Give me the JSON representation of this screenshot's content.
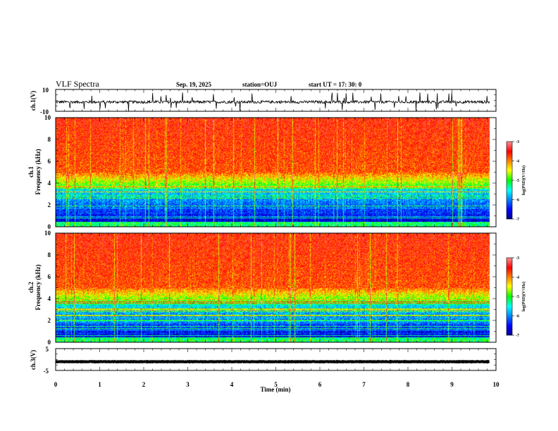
{
  "header": {
    "title": "VLF Spectra",
    "date": "Sep. 19, 2025",
    "station": "station=OUJ",
    "start": "start  UT =   17: 30: 0"
  },
  "chart_data": [
    {
      "type": "line",
      "name": "ch1-waveform",
      "ylabel": "ch.1(V)",
      "ylim": [
        -10,
        10
      ],
      "yticks": [
        {
          "value": 10,
          "label": "10"
        },
        {
          "value": -10,
          "label": "-10"
        }
      ],
      "xlim": [
        0,
        10
      ],
      "x_data_end": 9.85,
      "baseline": -1.5,
      "noise_amplitude": 2.5,
      "color": "#000000"
    },
    {
      "type": "heatmap",
      "name": "ch1-spectrogram",
      "ylabel": "ch.1\nFrequency (kHz)",
      "ylim": [
        0,
        10
      ],
      "yticks": [
        {
          "value": 0,
          "label": "0"
        },
        {
          "value": 2,
          "label": "2"
        },
        {
          "value": 4,
          "label": "4"
        },
        {
          "value": 6,
          "label": "6"
        },
        {
          "value": 8,
          "label": "8"
        },
        {
          "value": 10,
          "label": "10"
        }
      ],
      "xlim": [
        0,
        10
      ],
      "x_data_end": 9.85,
      "colorbar": {
        "title": "log(PSD)(V²/Hz)",
        "range": [
          -7,
          -3
        ],
        "ticks": [
          {
            "value": -3,
            "label": "-3"
          },
          {
            "value": -4,
            "label": "-4"
          },
          {
            "value": -5,
            "label": "-5"
          },
          {
            "value": -6,
            "label": "-6"
          },
          {
            "value": -7,
            "label": "-7"
          }
        ]
      }
    },
    {
      "type": "heatmap",
      "name": "ch2-spectrogram",
      "ylabel": "ch.2\nFrequency (kHz)",
      "ylim": [
        0,
        10
      ],
      "yticks": [
        {
          "value": 0,
          "label": "0"
        },
        {
          "value": 2,
          "label": "2"
        },
        {
          "value": 4,
          "label": "4"
        },
        {
          "value": 6,
          "label": "6"
        },
        {
          "value": 8,
          "label": "8"
        },
        {
          "value": 10,
          "label": "10"
        }
      ],
      "xlim": [
        0,
        10
      ],
      "x_data_end": 9.85,
      "colorbar": {
        "title": "log(PSD)(V²/Hz)",
        "range": [
          -7,
          -3
        ],
        "ticks": [
          {
            "value": -3,
            "label": "-3"
          },
          {
            "value": -4,
            "label": "-4"
          },
          {
            "value": -5,
            "label": "-5"
          },
          {
            "value": -6,
            "label": "-6"
          },
          {
            "value": -7,
            "label": "-7"
          }
        ]
      }
    },
    {
      "type": "line",
      "name": "ch3-waveform",
      "ylabel": "ch.3(V)",
      "ylim": [
        -5,
        5
      ],
      "yticks": [
        {
          "value": 5,
          "label": "5"
        },
        {
          "value": -5,
          "label": "-5"
        }
      ],
      "xlim": [
        0,
        10
      ],
      "x_data_end": 9.85,
      "baseline": -1.0,
      "noise_amplitude": 0.2,
      "color": "#000000",
      "xlabel": "Time (min)",
      "xticks": [
        {
          "value": 0,
          "label": "0"
        },
        {
          "value": 1,
          "label": "1"
        },
        {
          "value": 2,
          "label": "2"
        },
        {
          "value": 3,
          "label": "3"
        },
        {
          "value": 4,
          "label": "4"
        },
        {
          "value": 5,
          "label": "5"
        },
        {
          "value": 6,
          "label": "6"
        },
        {
          "value": 7,
          "label": "7"
        },
        {
          "value": 8,
          "label": "8"
        },
        {
          "value": 9,
          "label": "9"
        },
        {
          "value": 10,
          "label": "10"
        }
      ]
    }
  ],
  "colors": {
    "colormap": [
      "#00008f",
      "#0000ff",
      "#00ffff",
      "#00ff00",
      "#ffff00",
      "#ff0000"
    ],
    "trace": "#000000"
  }
}
